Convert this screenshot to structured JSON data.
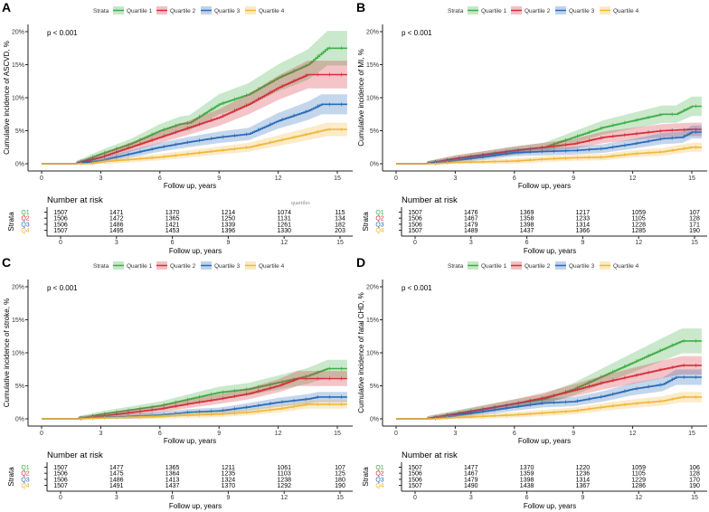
{
  "legend": {
    "title": "Strata",
    "labels": [
      "Quartile 1",
      "Quartile 2",
      "Quartile 3",
      "Quartile 4"
    ]
  },
  "colors": {
    "Quartile 1": "#3fae45",
    "Quartile 2": "#d3303b",
    "Quartile 3": "#2a6bb8",
    "Quartile 4": "#f0b83a"
  },
  "risk_table": {
    "title": "Number at risk",
    "ylabel": "Strata",
    "row_labels": [
      "Q1",
      "Q2",
      "Q3",
      "Q4"
    ],
    "xlabel": "Follow up, years"
  },
  "annotation_quartiles": "quartiles",
  "chart_data": [
    {
      "panel": "A",
      "type": "line",
      "pvalue": "p < 0.001",
      "ylabel": "Cumulative incidence of ASCVD, %",
      "xlabel": "Follow up, years",
      "xlim": [
        0,
        15.5
      ],
      "xticks": [
        0,
        3,
        6,
        9,
        12,
        15
      ],
      "ylim": [
        0,
        20
      ],
      "yticks": [
        "0%",
        "5%",
        "10%",
        "15%",
        "20%"
      ],
      "grid": false,
      "legend": "top",
      "series": [
        {
          "name": "Quartile 1",
          "points": [
            [
              0,
              0
            ],
            [
              1.7,
              0
            ],
            [
              3,
              1.5
            ],
            [
              4.5,
              3
            ],
            [
              6,
              5
            ],
            [
              7,
              6
            ],
            [
              7.5,
              6.2
            ],
            [
              9,
              9
            ],
            [
              10.5,
              10.5
            ],
            [
              12,
              13
            ],
            [
              13.5,
              15
            ],
            [
              14.5,
              17.5
            ],
            [
              15.5,
              17.5
            ]
          ]
        },
        {
          "name": "Quartile 2",
          "points": [
            [
              0,
              0
            ],
            [
              1.7,
              0
            ],
            [
              3,
              1
            ],
            [
              4.5,
              2.5
            ],
            [
              6,
              4
            ],
            [
              7.5,
              5.5
            ],
            [
              9,
              7
            ],
            [
              10.5,
              9
            ],
            [
              12,
              11.5
            ],
            [
              13.5,
              13.5
            ],
            [
              15.5,
              13.5
            ]
          ]
        },
        {
          "name": "Quartile 3",
          "points": [
            [
              0,
              0
            ],
            [
              1.7,
              0
            ],
            [
              3,
              0.5
            ],
            [
              4.5,
              1.5
            ],
            [
              6,
              2.5
            ],
            [
              7.5,
              3.3
            ],
            [
              9,
              4
            ],
            [
              10.5,
              4.5
            ],
            [
              12,
              6.5
            ],
            [
              13.5,
              8
            ],
            [
              14.2,
              9
            ],
            [
              15.5,
              9
            ]
          ]
        },
        {
          "name": "Quartile 4",
          "points": [
            [
              0,
              0
            ],
            [
              2.5,
              0
            ],
            [
              3,
              0.3
            ],
            [
              6,
              1
            ],
            [
              7.5,
              1.5
            ],
            [
              9,
              2
            ],
            [
              10.5,
              2.5
            ],
            [
              12,
              3.5
            ],
            [
              13.5,
              4.5
            ],
            [
              14.5,
              5.2
            ],
            [
              15.5,
              5.2
            ]
          ]
        }
      ],
      "at_risk": [
        [
          1507,
          1471,
          1370,
          1214,
          1074,
          115
        ],
        [
          1506,
          1472,
          1365,
          1250,
          1131,
          134
        ],
        [
          1506,
          1486,
          1421,
          1339,
          1261,
          182
        ],
        [
          1507,
          1495,
          1453,
          1396,
          1330,
          203
        ]
      ]
    },
    {
      "panel": "B",
      "type": "line",
      "pvalue": "p < 0.001",
      "ylabel": "Cumulative incidence of MI, %",
      "xlabel": "Follow up, years",
      "xlim": [
        0,
        15.5
      ],
      "xticks": [
        0,
        3,
        6,
        9,
        12,
        15
      ],
      "ylim": [
        0,
        20
      ],
      "yticks": [
        "0%",
        "5%",
        "10%",
        "15%",
        "20%"
      ],
      "grid": false,
      "legend": "top",
      "series": [
        {
          "name": "Quartile 1",
          "points": [
            [
              0,
              0
            ],
            [
              1.5,
              0
            ],
            [
              3,
              0.8
            ],
            [
              6,
              2
            ],
            [
              7.5,
              2.5
            ],
            [
              9,
              4
            ],
            [
              10.5,
              5.5
            ],
            [
              12,
              6.5
            ],
            [
              13.5,
              7.5
            ],
            [
              14.2,
              7.5
            ],
            [
              15,
              8.7
            ],
            [
              15.5,
              8.7
            ]
          ]
        },
        {
          "name": "Quartile 2",
          "points": [
            [
              0,
              0
            ],
            [
              1.5,
              0
            ],
            [
              3,
              0.8
            ],
            [
              6,
              2
            ],
            [
              7.5,
              2.5
            ],
            [
              9,
              3
            ],
            [
              10.5,
              4
            ],
            [
              12,
              4.5
            ],
            [
              13.5,
              5
            ],
            [
              15,
              5.2
            ],
            [
              15.5,
              5.2
            ]
          ]
        },
        {
          "name": "Quartile 3",
          "points": [
            [
              0,
              0
            ],
            [
              1.5,
              0
            ],
            [
              3,
              0.5
            ],
            [
              6,
              1.7
            ],
            [
              9,
              2
            ],
            [
              10.5,
              2.3
            ],
            [
              12,
              3
            ],
            [
              13.5,
              3.8
            ],
            [
              14.5,
              4
            ],
            [
              15,
              4.8
            ],
            [
              15.5,
              4.8
            ]
          ]
        },
        {
          "name": "Quartile 4",
          "points": [
            [
              0,
              0
            ],
            [
              2,
              0
            ],
            [
              3,
              0.2
            ],
            [
              6,
              0.4
            ],
            [
              7.5,
              0.7
            ],
            [
              9,
              0.9
            ],
            [
              10.5,
              1
            ],
            [
              12,
              1.5
            ],
            [
              13.5,
              1.8
            ],
            [
              15,
              2.5
            ],
            [
              15.5,
              2.5
            ]
          ]
        }
      ],
      "at_risk": [
        [
          1507,
          1476,
          1369,
          1217,
          1059,
          107
        ],
        [
          1506,
          1467,
          1358,
          1233,
          1105,
          128
        ],
        [
          1506,
          1479,
          1398,
          1314,
          1228,
          171
        ],
        [
          1507,
          1489,
          1437,
          1366,
          1285,
          190
        ]
      ]
    },
    {
      "panel": "C",
      "type": "line",
      "pvalue": "p < 0.001",
      "ylabel": "Cumulative incidence of stroke, %",
      "xlabel": "Follow up, years",
      "xlim": [
        0,
        15.5
      ],
      "xticks": [
        0,
        3,
        6,
        9,
        12,
        15
      ],
      "ylim": [
        0,
        20
      ],
      "yticks": [
        "0%",
        "5%",
        "10%",
        "15%",
        "20%"
      ],
      "grid": false,
      "legend": "top",
      "series": [
        {
          "name": "Quartile 1",
          "points": [
            [
              0,
              0
            ],
            [
              1.8,
              0
            ],
            [
              3,
              0.7
            ],
            [
              6,
              2
            ],
            [
              7.5,
              3
            ],
            [
              9,
              4
            ],
            [
              10.5,
              4.5
            ],
            [
              12,
              5.5
            ],
            [
              13.5,
              6.5
            ],
            [
              14.5,
              7.6
            ],
            [
              15.5,
              7.6
            ]
          ]
        },
        {
          "name": "Quartile 2",
          "points": [
            [
              0,
              0
            ],
            [
              1.8,
              0
            ],
            [
              3,
              0.4
            ],
            [
              6,
              1.5
            ],
            [
              7.5,
              2.3
            ],
            [
              9,
              3
            ],
            [
              10.5,
              3.8
            ],
            [
              12,
              5
            ],
            [
              13,
              6.1
            ],
            [
              15.5,
              6.1
            ]
          ]
        },
        {
          "name": "Quartile 3",
          "points": [
            [
              0,
              0
            ],
            [
              1.8,
              0
            ],
            [
              3,
              0.2
            ],
            [
              6,
              0.6
            ],
            [
              7.5,
              1
            ],
            [
              9,
              1.2
            ],
            [
              10.5,
              1.8
            ],
            [
              12,
              2.5
            ],
            [
              13.5,
              3
            ],
            [
              14,
              3.3
            ],
            [
              15.5,
              3.3
            ]
          ]
        },
        {
          "name": "Quartile 4",
          "points": [
            [
              0,
              0
            ],
            [
              2,
              0
            ],
            [
              3,
              0.1
            ],
            [
              6,
              0.4
            ],
            [
              9,
              0.7
            ],
            [
              10.5,
              1
            ],
            [
              12,
              1.5
            ],
            [
              13.5,
              2.2
            ],
            [
              15.5,
              2.2
            ]
          ]
        }
      ],
      "at_risk": [
        [
          1507,
          1477,
          1365,
          1211,
          1061,
          107
        ],
        [
          1506,
          1475,
          1364,
          1235,
          1103,
          125
        ],
        [
          1506,
          1486,
          1413,
          1324,
          1238,
          180
        ],
        [
          1507,
          1491,
          1437,
          1370,
          1292,
          190
        ]
      ]
    },
    {
      "panel": "D",
      "type": "line",
      "pvalue": "p < 0.001",
      "ylabel": "Cumulative incidence of fatal CHD, %",
      "xlabel": "Follow up, years",
      "xlim": [
        0,
        15.5
      ],
      "xticks": [
        0,
        3,
        6,
        9,
        12,
        15
      ],
      "ylim": [
        0,
        20
      ],
      "yticks": [
        "0%",
        "5%",
        "10%",
        "15%",
        "20%"
      ],
      "grid": false,
      "legend": "top",
      "series": [
        {
          "name": "Quartile 1",
          "points": [
            [
              0,
              0
            ],
            [
              1.5,
              0
            ],
            [
              3,
              0.8
            ],
            [
              6,
              2.3
            ],
            [
              7.5,
              3
            ],
            [
              9,
              4.5
            ],
            [
              10.5,
              6.5
            ],
            [
              12,
              8.5
            ],
            [
              13.5,
              10.5
            ],
            [
              14.5,
              11.8
            ],
            [
              15.5,
              11.8
            ]
          ]
        },
        {
          "name": "Quartile 2",
          "points": [
            [
              0,
              0
            ],
            [
              1.5,
              0
            ],
            [
              3,
              0.7
            ],
            [
              6,
              2.3
            ],
            [
              7.5,
              3.2
            ],
            [
              9,
              4.3
            ],
            [
              10.5,
              5.5
            ],
            [
              12,
              6.5
            ],
            [
              13.5,
              7.5
            ],
            [
              14.5,
              8.1
            ],
            [
              15.5,
              8.1
            ]
          ]
        },
        {
          "name": "Quartile 3",
          "points": [
            [
              0,
              0
            ],
            [
              1.8,
              0
            ],
            [
              3,
              0.5
            ],
            [
              6,
              1.8
            ],
            [
              7.5,
              2.4
            ],
            [
              9,
              2.6
            ],
            [
              10.5,
              3.4
            ],
            [
              12,
              4.5
            ],
            [
              13.5,
              5.2
            ],
            [
              14.2,
              6.3
            ],
            [
              15.5,
              6.3
            ]
          ]
        },
        {
          "name": "Quartile 4",
          "points": [
            [
              0,
              0
            ],
            [
              2,
              0
            ],
            [
              3,
              0.2
            ],
            [
              6,
              0.6
            ],
            [
              7.5,
              0.9
            ],
            [
              9,
              1.2
            ],
            [
              10.5,
              1.8
            ],
            [
              12,
              2.3
            ],
            [
              13.5,
              2.7
            ],
            [
              14.5,
              3.3
            ],
            [
              15.5,
              3.3
            ]
          ]
        }
      ],
      "at_risk": [
        [
          1507,
          1477,
          1370,
          1220,
          1059,
          106
        ],
        [
          1506,
          1467,
          1359,
          1236,
          1105,
          128
        ],
        [
          1506,
          1479,
          1398,
          1314,
          1229,
          170
        ],
        [
          1507,
          1490,
          1438,
          1367,
          1286,
          190
        ]
      ]
    }
  ]
}
